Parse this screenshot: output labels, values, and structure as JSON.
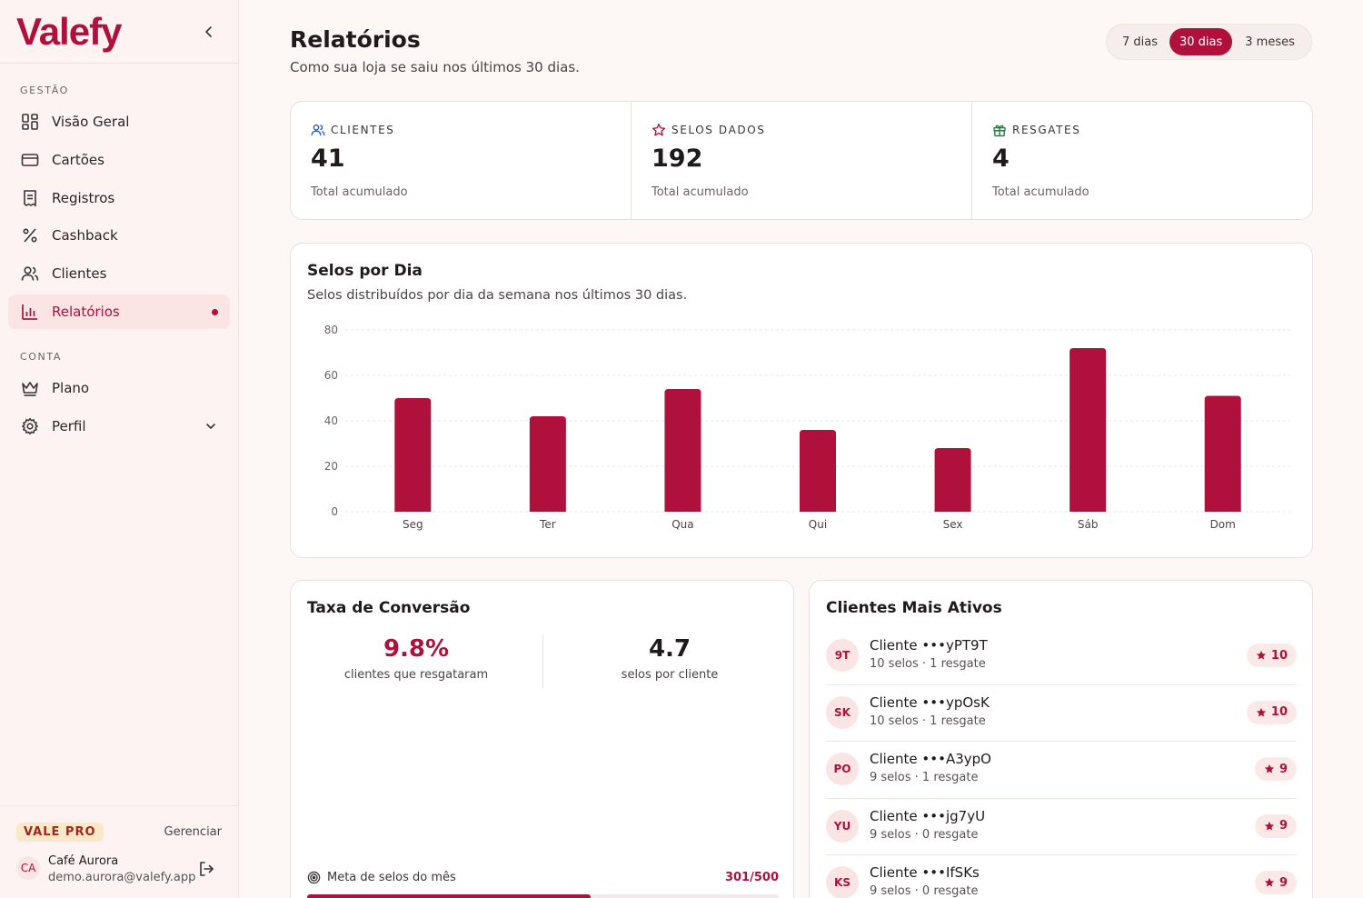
{
  "brand": {
    "logo": "Valefy",
    "accent": "#b0103c"
  },
  "sidebar": {
    "section_gestao": "GESTÃO",
    "section_conta": "CONTA",
    "items": [
      {
        "label": "Visão Geral",
        "icon": "grid-icon"
      },
      {
        "label": "Cartões",
        "icon": "card-icon"
      },
      {
        "label": "Registros",
        "icon": "receipt-icon"
      },
      {
        "label": "Cashback",
        "icon": "percent-icon"
      },
      {
        "label": "Clientes",
        "icon": "users-icon"
      },
      {
        "label": "Relatórios",
        "icon": "bar-chart-icon",
        "active": true
      }
    ],
    "account_items": [
      {
        "label": "Plano",
        "icon": "crown-icon"
      },
      {
        "label": "Perfil",
        "icon": "gear-icon"
      }
    ],
    "plan_badge": "VALE PRO",
    "manage_label": "Gerenciar",
    "user": {
      "initials": "CA",
      "name": "Café Aurora",
      "email": "demo.aurora@valefy.app"
    }
  },
  "header": {
    "title": "Relatórios",
    "subtitle": "Como sua loja se saiu nos últimos 30 dias.",
    "ranges": [
      "7 dias",
      "30 dias",
      "3 meses"
    ],
    "selected_range": "30 dias"
  },
  "stats": [
    {
      "label": "CLIENTES",
      "value": "41",
      "note": "Total acumulado",
      "icon": "users-icon"
    },
    {
      "label": "SELOS DADOS",
      "value": "192",
      "note": "Total acumulado",
      "icon": "star-icon"
    },
    {
      "label": "RESGATES",
      "value": "4",
      "note": "Total acumulado",
      "icon": "gift-icon"
    }
  ],
  "chart_card": {
    "title": "Selos por Dia",
    "subtitle": "Selos distribuídos por dia da semana nos últimos 30 dias."
  },
  "chart_data": {
    "type": "bar",
    "categories": [
      "Seg",
      "Ter",
      "Qua",
      "Qui",
      "Sex",
      "Sáb",
      "Dom"
    ],
    "values": [
      50,
      42,
      54,
      36,
      28,
      72,
      51
    ],
    "title": "",
    "xlabel": "",
    "ylabel": "",
    "ylim": [
      0,
      80
    ],
    "yticks": [
      0,
      20,
      40,
      60,
      80
    ],
    "grid": true,
    "bar_color": "#b0103c"
  },
  "conversion": {
    "title": "Taxa de Conversão",
    "rate_value": "9.8%",
    "rate_label": "clientes que resgataram",
    "avg_value": "4.7",
    "avg_label": "selos por cliente",
    "goal_label": "Meta de selos do mês",
    "goal_count": "301/500",
    "goal_fraction": 0.602
  },
  "active_clients": {
    "title": "Clientes Mais Ativos",
    "rows": [
      {
        "initials": "9T",
        "name": "Cliente •••yPT9T",
        "meta": "10 selos · 1 resgate",
        "stamps": "10"
      },
      {
        "initials": "SK",
        "name": "Cliente •••ypOsK",
        "meta": "10 selos · 1 resgate",
        "stamps": "10"
      },
      {
        "initials": "PO",
        "name": "Cliente •••A3ypO",
        "meta": "9 selos · 1 resgate",
        "stamps": "9"
      },
      {
        "initials": "YU",
        "name": "Cliente •••jg7yU",
        "meta": "9 selos · 0 resgate",
        "stamps": "9"
      },
      {
        "initials": "KS",
        "name": "Cliente •••IfSKs",
        "meta": "9 selos · 0 resgate",
        "stamps": "9"
      }
    ]
  }
}
